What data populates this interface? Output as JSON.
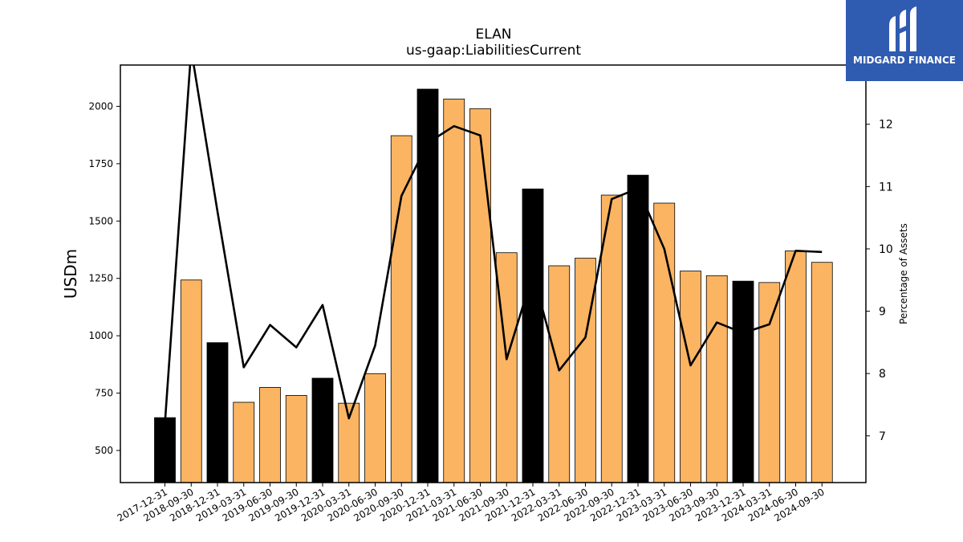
{
  "chart_data": {
    "type": "bar",
    "title": "ELAN",
    "subtitle": "us-gaap:LiabilitiesCurrent",
    "ylabel": "USDm",
    "y2label": "Percentage of Assets",
    "ylim": [
      360,
      2180
    ],
    "y2lim": [
      6.25,
      12.95
    ],
    "yticks": [
      500,
      750,
      1000,
      1250,
      1500,
      1750,
      2000
    ],
    "y2ticks": [
      7,
      8,
      9,
      10,
      11,
      12
    ],
    "grid": false,
    "categories": [
      "2017-12-31",
      "2018-09-30",
      "2018-12-31",
      "2019-03-31",
      "2019-06-30",
      "2019-09-30",
      "2019-12-31",
      "2020-03-31",
      "2020-06-30",
      "2020-09-30",
      "2020-12-31",
      "2021-03-31",
      "2021-06-30",
      "2021-09-30",
      "2021-12-31",
      "2022-03-31",
      "2022-06-30",
      "2022-09-30",
      "2022-12-31",
      "2023-03-31",
      "2023-06-30",
      "2023-09-30",
      "2023-12-31",
      "2024-03-31",
      "2024-06-30",
      "2024-09-30"
    ],
    "series": [
      {
        "name": "",
        "kind": "bar",
        "values": [
          643,
          1243,
          970,
          710,
          775,
          740,
          815,
          706,
          835,
          1872,
          2075,
          2032,
          1990,
          1362,
          1640,
          1305,
          1338,
          1613,
          1700,
          1578,
          1282,
          1262,
          1238,
          1232,
          1370,
          1320
        ],
        "year_end_flags": [
          true,
          false,
          true,
          false,
          false,
          false,
          true,
          false,
          false,
          false,
          true,
          false,
          false,
          false,
          true,
          false,
          false,
          false,
          true,
          false,
          false,
          false,
          true,
          false,
          false,
          false
        ]
      },
      {
        "name": "",
        "kind": "line",
        "axis": "right",
        "values": [
          7.2,
          13.2,
          10.6,
          8.1,
          8.78,
          8.42,
          9.1,
          7.28,
          8.45,
          10.85,
          11.7,
          11.97,
          11.82,
          8.23,
          9.6,
          8.05,
          8.58,
          10.8,
          10.97,
          10.0,
          8.13,
          8.82,
          8.65,
          8.79,
          9.97,
          9.95
        ]
      }
    ],
    "colors": {
      "bar": "#fbb462",
      "bar_year_end": "#000000",
      "bar_edge": "#000000",
      "line": "#000000"
    }
  },
  "logo": {
    "text": "MIDGARD FINANCE",
    "background": "#2f5bb0"
  }
}
